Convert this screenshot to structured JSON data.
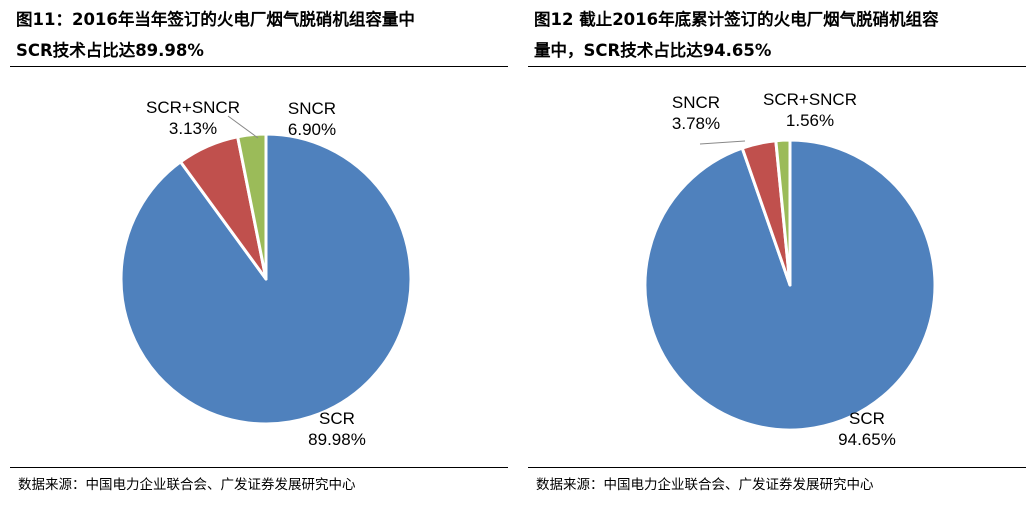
{
  "colors": {
    "SCR": "#4F81BD",
    "SNCR": "#C0504D",
    "SCR+SNCR": "#9BBB59",
    "border": "#ffffff",
    "leader": "#888888"
  },
  "charts": [
    {
      "title_line1": "图11：2016年当年签订的火电厂烟气脱硝机组容量中",
      "title_line2": "SCR技术占比达89.98%",
      "source": "数据来源：中国电力企业联合会、广发证券发展研究中心",
      "labels": [
        {
          "name": "SCR",
          "value": "89.98%"
        },
        {
          "name": "SNCR",
          "value": "6.90%"
        },
        {
          "name": "SCR+SNCR",
          "value": "3.13%"
        }
      ]
    },
    {
      "title_line1": "图12 截止2016年底累计签订的火电厂烟气脱硝机组容",
      "title_line2": "量中，SCR技术占比达94.65%",
      "source": "数据来源：中国电力企业联合会、广发证券发展研究中心",
      "labels": [
        {
          "name": "SCR",
          "value": "94.65%"
        },
        {
          "name": "SNCR",
          "value": "3.78%"
        },
        {
          "name": "SCR+SNCR",
          "value": "1.56%"
        }
      ]
    }
  ],
  "chart_data": [
    {
      "type": "pie",
      "title": "图11：2016年当年签订的火电厂烟气脱硝机组容量中SCR技术占比达89.98%",
      "categories": [
        "SCR",
        "SNCR",
        "SCR+SNCR"
      ],
      "values": [
        89.98,
        6.9,
        3.13
      ],
      "start_angle": "12 o'clock, clockwise",
      "legend": "none (data labels)"
    },
    {
      "type": "pie",
      "title": "图12 截止2016年底累计签订的火电厂烟气脱硝机组容量中，SCR技术占比达94.65%",
      "categories": [
        "SCR",
        "SNCR",
        "SCR+SNCR"
      ],
      "values": [
        94.65,
        3.78,
        1.56
      ],
      "start_angle": "12 o'clock, clockwise",
      "legend": "none (data labels)"
    }
  ]
}
